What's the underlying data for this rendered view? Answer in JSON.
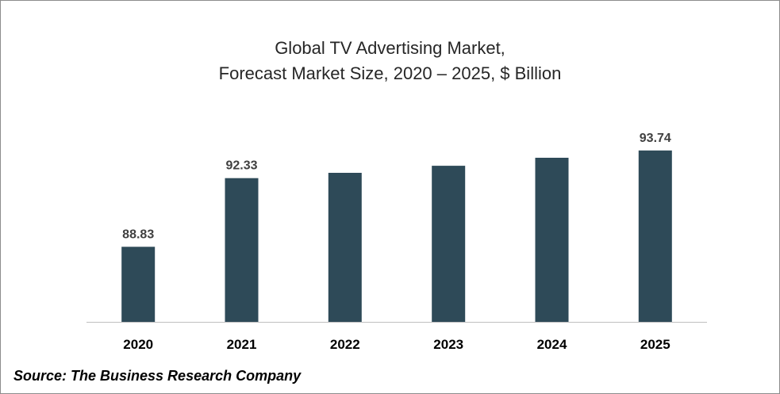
{
  "chart_data": {
    "type": "bar",
    "title_line1": "Global TV Advertising Market,",
    "title_line2": "Forecast Market Size, 2020 – 2025, $ Billion",
    "categories": [
      "2020",
      "2021",
      "2022",
      "2023",
      "2024",
      "2025"
    ],
    "values": [
      88.83,
      92.33,
      92.6,
      92.96,
      93.37,
      93.74
    ],
    "data_labels": [
      "88.83",
      "92.33",
      "",
      "",
      "",
      "93.74"
    ],
    "xlabel": "",
    "ylabel": "",
    "ylim": [
      85,
      94.5
    ],
    "grid": false,
    "bar_color": "#2e4a58"
  },
  "source": "Source: The Business Research Company"
}
